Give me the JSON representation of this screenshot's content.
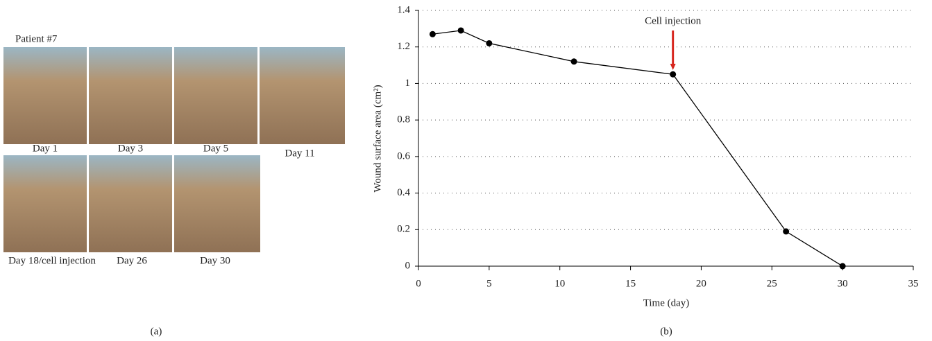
{
  "panel_a": {
    "title": "Patient #7",
    "captions": [
      "Day 1",
      "Day 3",
      "Day 5",
      "Day 11",
      "Day 18/cell injection",
      "Day 26",
      "Day 30"
    ],
    "label": "(a)"
  },
  "chart_data": {
    "type": "line",
    "panel_label": "(b)",
    "x_label": "Time (day)",
    "y_label": "Wound surface area (cm²)",
    "x": [
      1,
      3,
      5,
      11,
      18,
      26,
      30
    ],
    "series": [
      {
        "name": "Wound surface area",
        "color": "#000000",
        "values": [
          1.27,
          1.29,
          1.22,
          1.12,
          1.05,
          0.19,
          0
        ]
      }
    ],
    "xlim": [
      0,
      35
    ],
    "xticks": [
      0,
      5,
      10,
      15,
      20,
      25,
      30,
      35
    ],
    "ylim": [
      0,
      1.4
    ],
    "yticks": [
      0,
      0.2,
      0.4,
      0.6,
      0.8,
      1,
      1.2,
      1.4
    ],
    "grid": true,
    "annotations": [
      {
        "text": "Cell injection",
        "x": 18,
        "color": "#d7261e"
      }
    ]
  }
}
